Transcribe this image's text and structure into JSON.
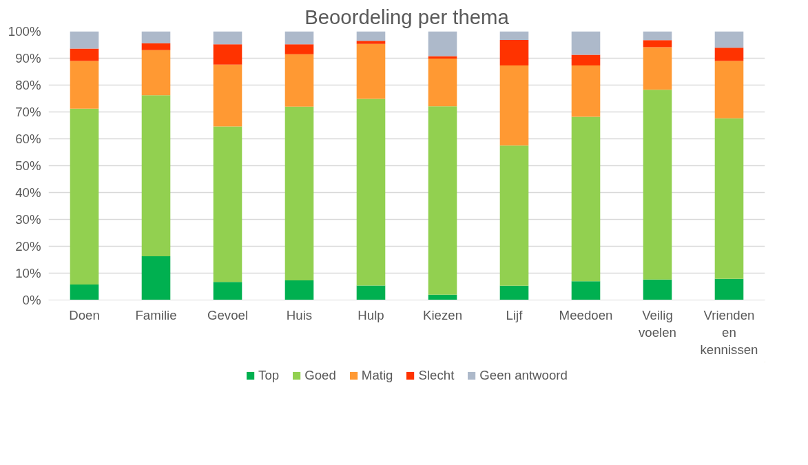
{
  "chart_data": {
    "type": "bar",
    "title": "Beoordeling per thema",
    "stacked": true,
    "categories": [
      "Doen",
      "Familie",
      "Gevoel",
      "Huis",
      "Hulp",
      "Kiezen",
      "Lijf",
      "Meedoen",
      "Veilig voelen",
      "Vrienden en kennissen"
    ],
    "series": [
      {
        "name": "Top",
        "color": "#00b050",
        "values": [
          5.8,
          16.3,
          6.7,
          7.3,
          5.4,
          2.0,
          5.3,
          7.0,
          7.6,
          7.9
        ]
      },
      {
        "name": "Goed",
        "color": "#92d050",
        "values": [
          65.4,
          59.9,
          57.9,
          64.7,
          69.5,
          70.1,
          52.2,
          61.2,
          70.7,
          59.7
        ]
      },
      {
        "name": "Matig",
        "color": "#ff9933",
        "values": [
          17.8,
          16.8,
          23.0,
          19.5,
          20.4,
          17.8,
          29.8,
          19.1,
          15.8,
          21.4
        ]
      },
      {
        "name": "Slecht",
        "color": "#ff3300",
        "values": [
          4.6,
          2.6,
          7.6,
          3.7,
          1.2,
          0.9,
          9.5,
          4.0,
          2.6,
          4.9
        ]
      },
      {
        "name": "Geen antwoord",
        "color": "#adb9ca",
        "values": [
          6.4,
          4.4,
          4.8,
          4.8,
          3.5,
          9.2,
          3.2,
          8.7,
          3.3,
          6.1
        ]
      }
    ],
    "ylim": [
      0,
      100
    ],
    "yticks": [
      {
        "value": 0,
        "label": "0%"
      },
      {
        "value": 10,
        "label": "10%"
      },
      {
        "value": 20,
        "label": "20%"
      },
      {
        "value": 30,
        "label": "30%"
      },
      {
        "value": 40,
        "label": "40%"
      },
      {
        "value": 50,
        "label": "50%"
      },
      {
        "value": 60,
        "label": "60%"
      },
      {
        "value": 70,
        "label": "70%"
      },
      {
        "value": 80,
        "label": "80%"
      },
      {
        "value": 90,
        "label": "90%"
      },
      {
        "value": 100,
        "label": "100%"
      }
    ],
    "grid": "y",
    "legend": "bottom"
  }
}
